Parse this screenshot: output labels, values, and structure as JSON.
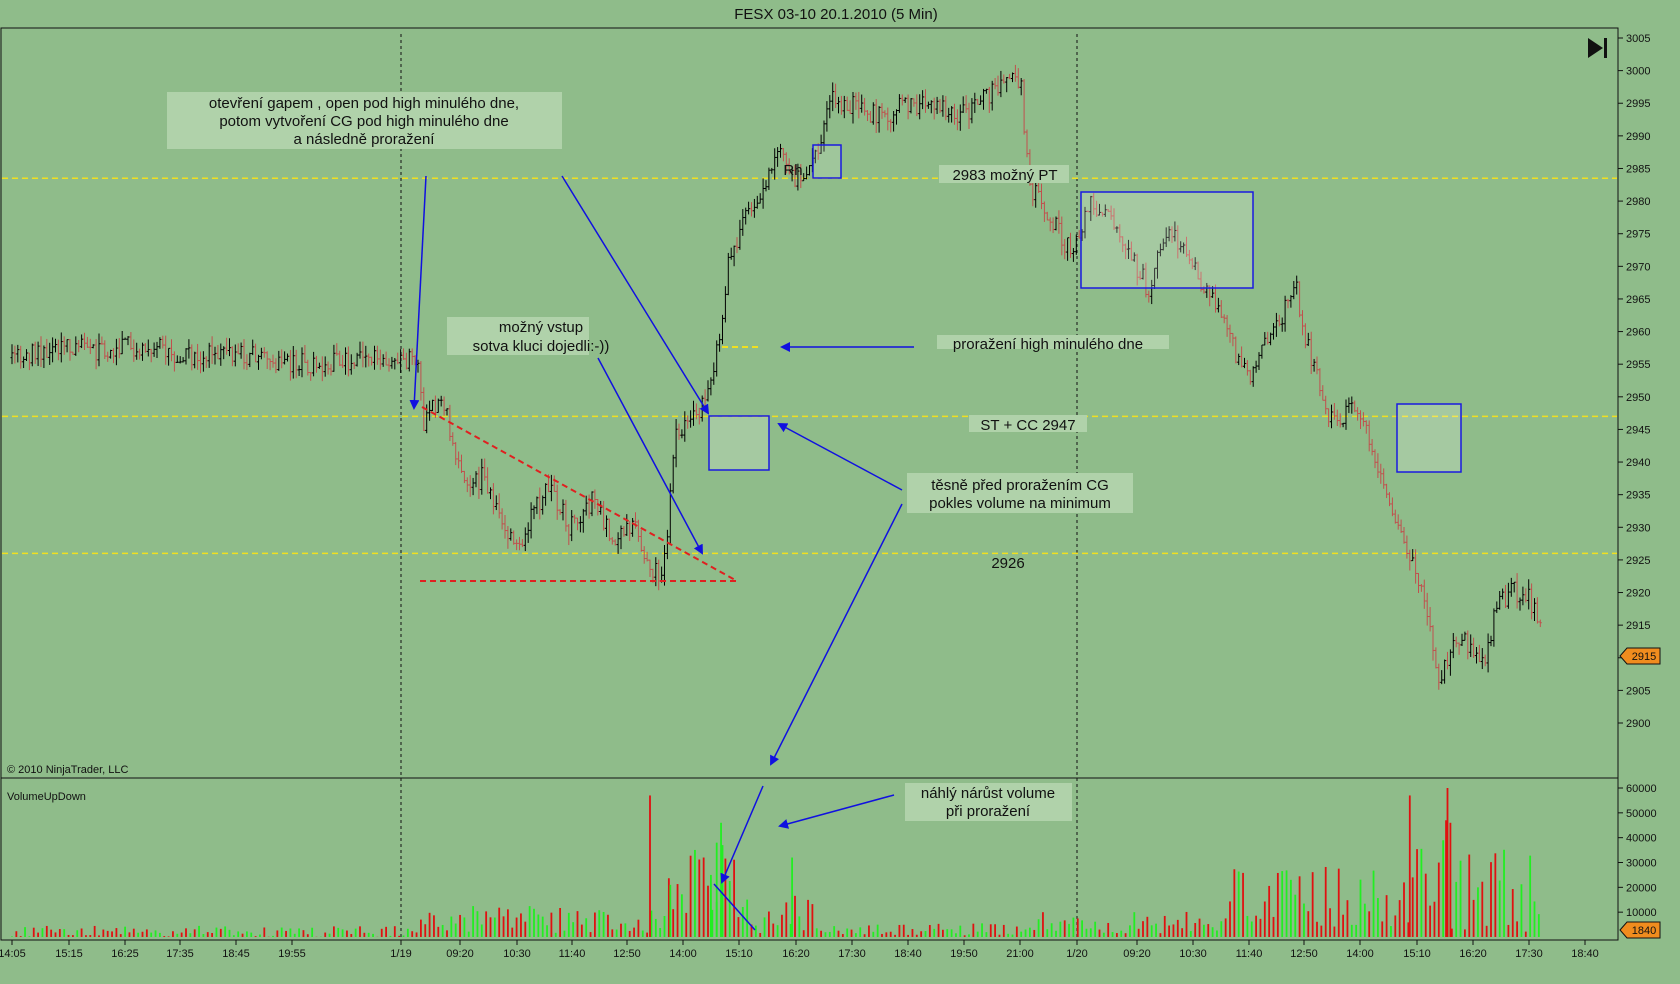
{
  "title": "FESX 03-10  20.1.2010 (5 Min)",
  "copyright": "© 2010 NinjaTrader, LLC",
  "volume_panel_label": "VolumeUpDown",
  "end_icon": "skip-to-end-icon",
  "colors": {
    "background": "#8fbc8a",
    "up_bar": "#000000",
    "down_bar": "#c0504d",
    "volume_up": "#22ee22",
    "volume_down": "#e01010",
    "level_line": "#f0e020",
    "trend_line": "#e02020",
    "arrow": "#1010e0",
    "box": "#1a1ae0",
    "price_tag": "#f08c1e"
  },
  "annotations": {
    "gap_note": [
      "otevření  gapem , open pod high minulého dne,",
      "potom vytvoření CG pod high minulého dne",
      "a následně proražení"
    ],
    "entry_note": [
      "možný vstup",
      "sotva kluci dojedli:-))"
    ],
    "breakout_note": "proražení high minulého dne",
    "pt_note": "2983 možný PT",
    "st_note": "ST + CC 2947",
    "level_2926": "2926",
    "rh": "Rh",
    "volume_min_note": [
      "těsně před proražením CG",
      "pokles volume na minimum"
    ],
    "volume_spike_note": [
      "náhlý nárůst volume",
      "při proražení"
    ]
  },
  "chart_data": [
    {
      "type": "candlestick-ohlc",
      "title": "FESX 03-10  20.1.2010 (5 Min)",
      "x_tick_labels": [
        "14:05",
        "15:15",
        "16:25",
        "17:35",
        "18:45",
        "19:55",
        "1/19",
        "09:20",
        "10:30",
        "11:40",
        "12:50",
        "14:00",
        "15:10",
        "16:20",
        "17:30",
        "18:40",
        "19:50",
        "21:00",
        "1/20",
        "09:20",
        "10:30",
        "11:40",
        "12:50",
        "14:00",
        "15:10",
        "16:20",
        "17:30",
        "18:40"
      ],
      "y_ticks": [
        2900,
        2905,
        2910,
        2915,
        2920,
        2925,
        2930,
        2935,
        2940,
        2945,
        2950,
        2955,
        2960,
        2965,
        2970,
        2975,
        2980,
        2985,
        2990,
        2995,
        3000,
        3005
      ],
      "ylim": [
        2899,
        3006
      ],
      "last_price": "2915",
      "horizontal_levels": [
        2983.5,
        2947,
        2926
      ],
      "path_waypoints": [
        [
          0,
          2956
        ],
        [
          30,
          2958
        ],
        [
          60,
          2957
        ],
        [
          90,
          2958
        ],
        [
          120,
          2956
        ],
        [
          150,
          2957
        ],
        [
          200,
          2955
        ],
        [
          279,
          2956
        ],
        [
          284,
          2946
        ],
        [
          296,
          2950
        ],
        [
          305,
          2943
        ],
        [
          313,
          2935
        ],
        [
          325,
          2938
        ],
        [
          340,
          2930
        ],
        [
          350,
          2926
        ],
        [
          358,
          2932
        ],
        [
          370,
          2936
        ],
        [
          385,
          2930
        ],
        [
          400,
          2934
        ],
        [
          415,
          2928
        ],
        [
          430,
          2930
        ],
        [
          440,
          2924
        ],
        [
          448,
          2922
        ],
        [
          452,
          2930
        ],
        [
          458,
          2944
        ],
        [
          470,
          2947
        ],
        [
          480,
          2950
        ],
        [
          487,
          2958
        ],
        [
          494,
          2970
        ],
        [
          506,
          2978
        ],
        [
          514,
          2980
        ],
        [
          522,
          2984
        ],
        [
          530,
          2988
        ],
        [
          540,
          2983
        ],
        [
          548,
          2984
        ],
        [
          555,
          2988
        ],
        [
          566,
          2996
        ],
        [
          585,
          2994
        ],
        [
          600,
          2993
        ],
        [
          620,
          2995
        ],
        [
          640,
          2994
        ],
        [
          660,
          2993
        ],
        [
          680,
          2998
        ],
        [
          690,
          2999
        ],
        [
          696,
          2997
        ],
        [
          702,
          2982
        ],
        [
          715,
          2978
        ],
        [
          730,
          2972
        ],
        [
          745,
          2980
        ],
        [
          760,
          2976
        ],
        [
          775,
          2970
        ],
        [
          785,
          2966
        ],
        [
          795,
          2976
        ],
        [
          810,
          2972
        ],
        [
          825,
          2966
        ],
        [
          835,
          2962
        ],
        [
          845,
          2956
        ],
        [
          855,
          2953
        ],
        [
          865,
          2958
        ],
        [
          875,
          2962
        ],
        [
          885,
          2968
        ],
        [
          890,
          2960
        ],
        [
          898,
          2955
        ],
        [
          905,
          2948
        ],
        [
          915,
          2946
        ],
        [
          925,
          2948
        ],
        [
          935,
          2944
        ],
        [
          945,
          2938
        ],
        [
          955,
          2930
        ],
        [
          965,
          2925
        ],
        [
          975,
          2918
        ],
        [
          985,
          2906
        ],
        [
          995,
          2914
        ],
        [
          1005,
          2912
        ],
        [
          1015,
          2910
        ],
        [
          1025,
          2918
        ],
        [
          1035,
          2920
        ],
        [
          1045,
          2920
        ],
        [
          1054,
          2915
        ]
      ]
    },
    {
      "type": "bar",
      "title": "VolumeUpDown",
      "y_ticks": [
        10000,
        20000,
        30000,
        40000,
        50000,
        60000
      ],
      "ylim": [
        0,
        62000
      ],
      "last_value": "1840",
      "notable_bars": [
        [
          440,
          57000
        ],
        [
          454,
          21000
        ],
        [
          482,
          25000
        ],
        [
          486,
          38000
        ],
        [
          489,
          46000
        ],
        [
          490,
          37000
        ],
        [
          538,
          32000
        ],
        [
          964,
          57000
        ],
        [
          989,
          47000
        ],
        [
          990,
          60000
        ],
        [
          992,
          46000
        ]
      ]
    }
  ]
}
